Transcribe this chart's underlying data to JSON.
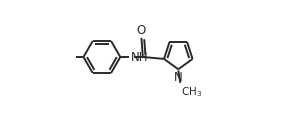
{
  "bg_color": "#ffffff",
  "bond_color": "#2a2a2a",
  "bond_width": 1.4,
  "dbo": 0.022,
  "font_size_atoms": 8.5,
  "fig_width": 2.87,
  "fig_height": 1.16,
  "dpi": 100,
  "xlim": [
    0.0,
    1.0
  ],
  "ylim": [
    0.08,
    0.92
  ]
}
